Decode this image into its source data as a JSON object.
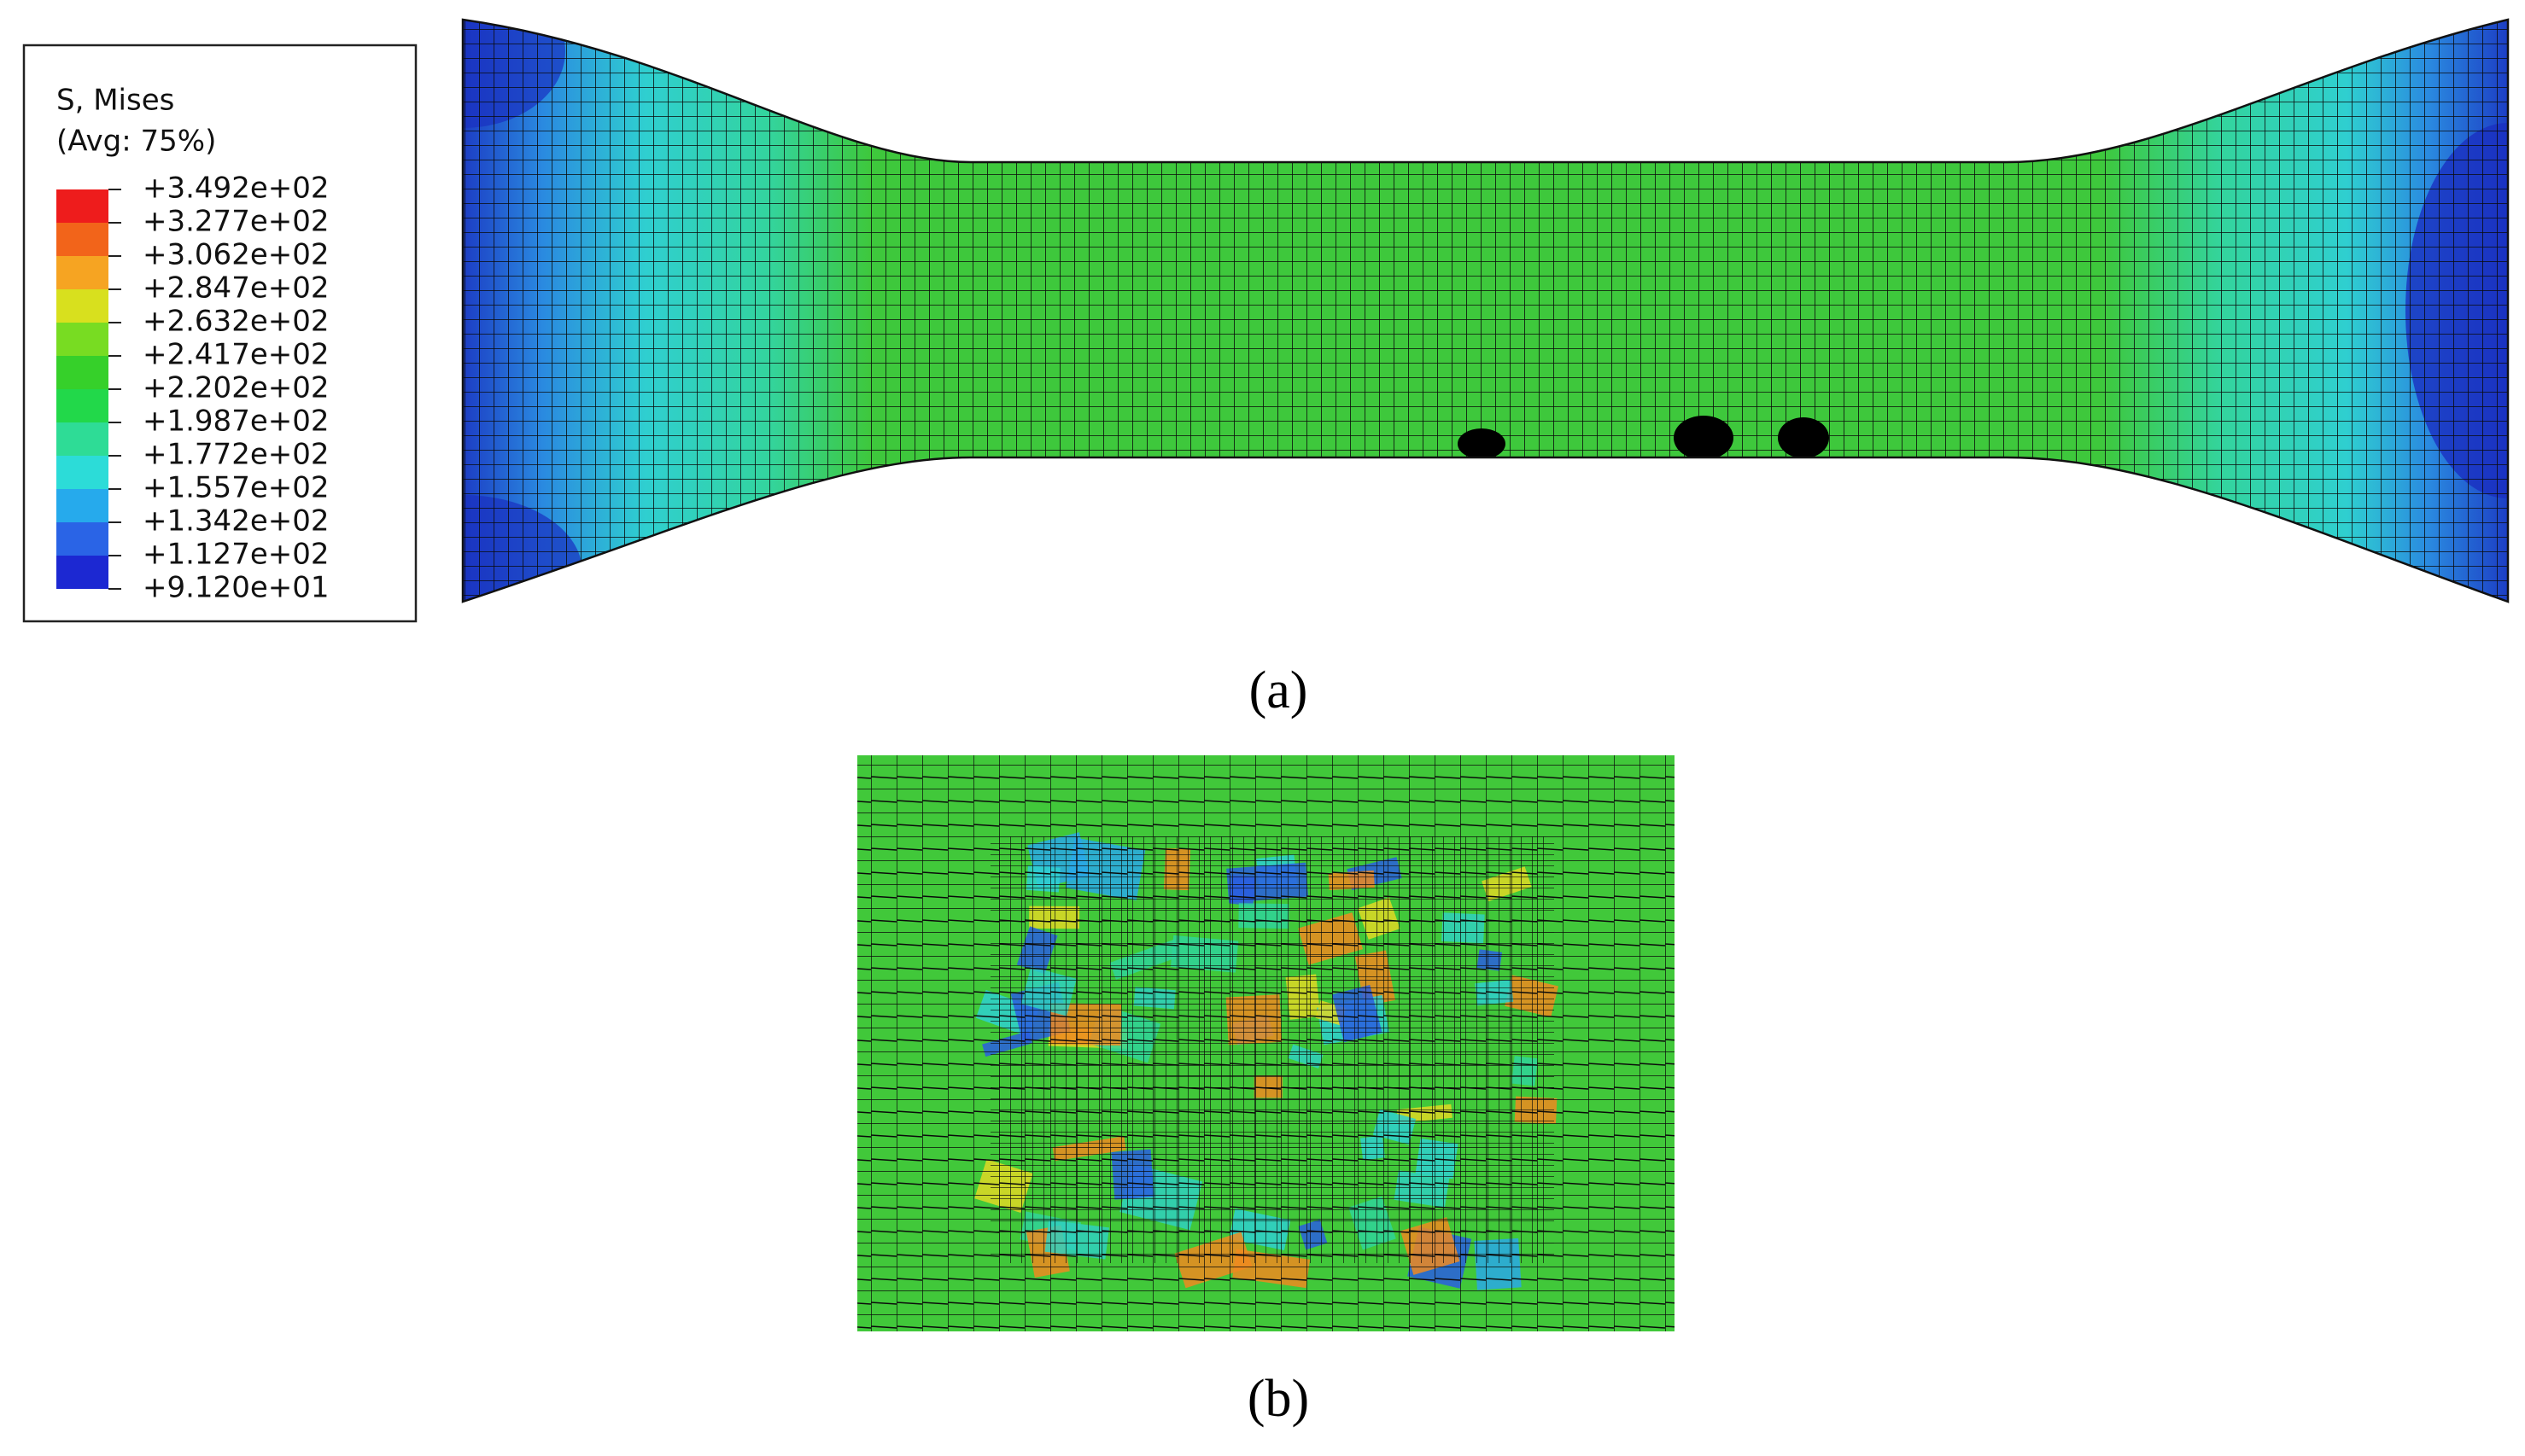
{
  "legend": {
    "title": "S, Mises",
    "subtitle": "(Avg: 75%)",
    "labels": [
      "+3.492e+02",
      "+3.277e+02",
      "+3.062e+02",
      "+2.847e+02",
      "+2.632e+02",
      "+2.417e+02",
      "+2.202e+02",
      "+1.987e+02",
      "+1.772e+02",
      "+1.557e+02",
      "+1.342e+02",
      "+1.127e+02",
      "+9.120e+01"
    ]
  },
  "panels": [
    {
      "caption": "(a)"
    },
    {
      "caption": "(b)"
    }
  ]
}
